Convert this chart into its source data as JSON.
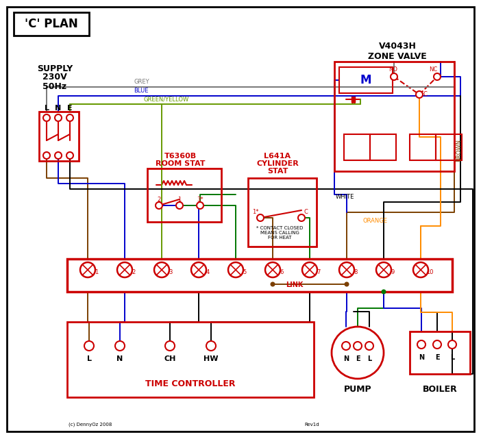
{
  "title": "'C' PLAN",
  "background": "#ffffff",
  "border_color": "#000000",
  "red": "#cc0000",
  "blue": "#0000cc",
  "green": "#007700",
  "grey": "#777777",
  "brown": "#7B3F00",
  "orange": "#FF8C00",
  "green_yellow": "#669900",
  "supply_text_lines": [
    "SUPPLY",
    "230V",
    "50Hz"
  ],
  "zone_valve_text": "V4043H\nZONE VALVE",
  "room_stat_line1": "T6360B",
  "room_stat_line2": "ROOM STAT",
  "cyl_stat_line1": "L641A",
  "cyl_stat_line2": "CYLINDER",
  "cyl_stat_line3": "STAT",
  "time_controller_text": "TIME CONTROLLER",
  "pump_text": "PUMP",
  "boiler_text": "BOILER",
  "link_text": "LINK",
  "contact_note": "* CONTACT CLOSED\nMEANS CALLING\nFOR HEAT",
  "copyright": "(c) DennyOz 2008",
  "rev": "Rev1d",
  "wire_labels": {
    "grey": "GREY",
    "blue": "BLUE",
    "green_yellow": "GREEN/YELLOW",
    "brown": "BROWN",
    "white": "WHITE",
    "orange": "ORANGE"
  }
}
